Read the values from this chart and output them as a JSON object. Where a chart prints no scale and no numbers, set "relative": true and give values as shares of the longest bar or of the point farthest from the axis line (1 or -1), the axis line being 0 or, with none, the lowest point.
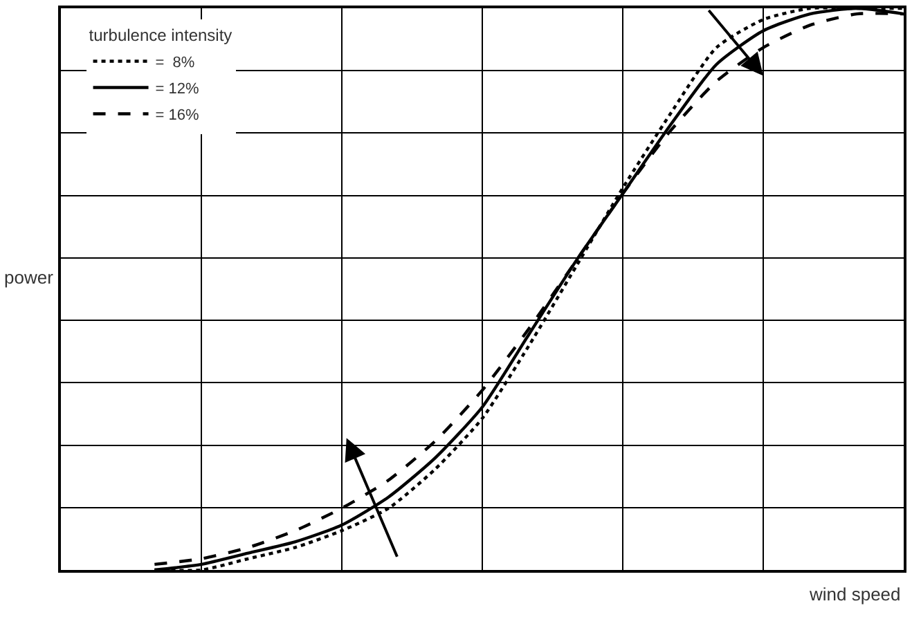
{
  "chart_data": {
    "type": "line",
    "relative": true,
    "xlabel": "wind speed",
    "ylabel": "power",
    "legend_title": "turbulence intensity",
    "legend": "top left",
    "grid": true,
    "marker": "none",
    "categories": [
      null,
      null,
      null,
      null,
      null,
      null,
      null,
      null,
      null,
      null,
      null,
      null,
      null,
      null,
      null,
      null,
      null
    ],
    "series": [
      {
        "name": "=  8%",
        "color": "#000000",
        "line_style": "dotted",
        "values": [
          0,
          0,
          0.02,
          0.04,
          0.07,
          0.11,
          0.18,
          0.27,
          0.4,
          0.54,
          0.68,
          0.81,
          0.93,
          0.98,
          1,
          1,
          1
        ]
      },
      {
        "name": "= 12%",
        "color": "#000000",
        "line_style": "solid",
        "values": [
          0,
          0.01,
          0.03,
          0.05,
          0.08,
          0.13,
          0.2,
          0.29,
          0.42,
          0.55,
          0.67,
          0.79,
          0.9,
          0.96,
          0.99,
          1,
          0.99
        ]
      },
      {
        "name": "= 16%",
        "color": "#000000",
        "line_style": "dashed",
        "values": [
          0.01,
          0.02,
          0.04,
          0.07,
          0.11,
          0.16,
          0.23,
          0.32,
          0.43,
          0.55,
          0.67,
          0.78,
          0.87,
          0.93,
          0.97,
          0.99,
          0.99
        ]
      }
    ]
  }
}
